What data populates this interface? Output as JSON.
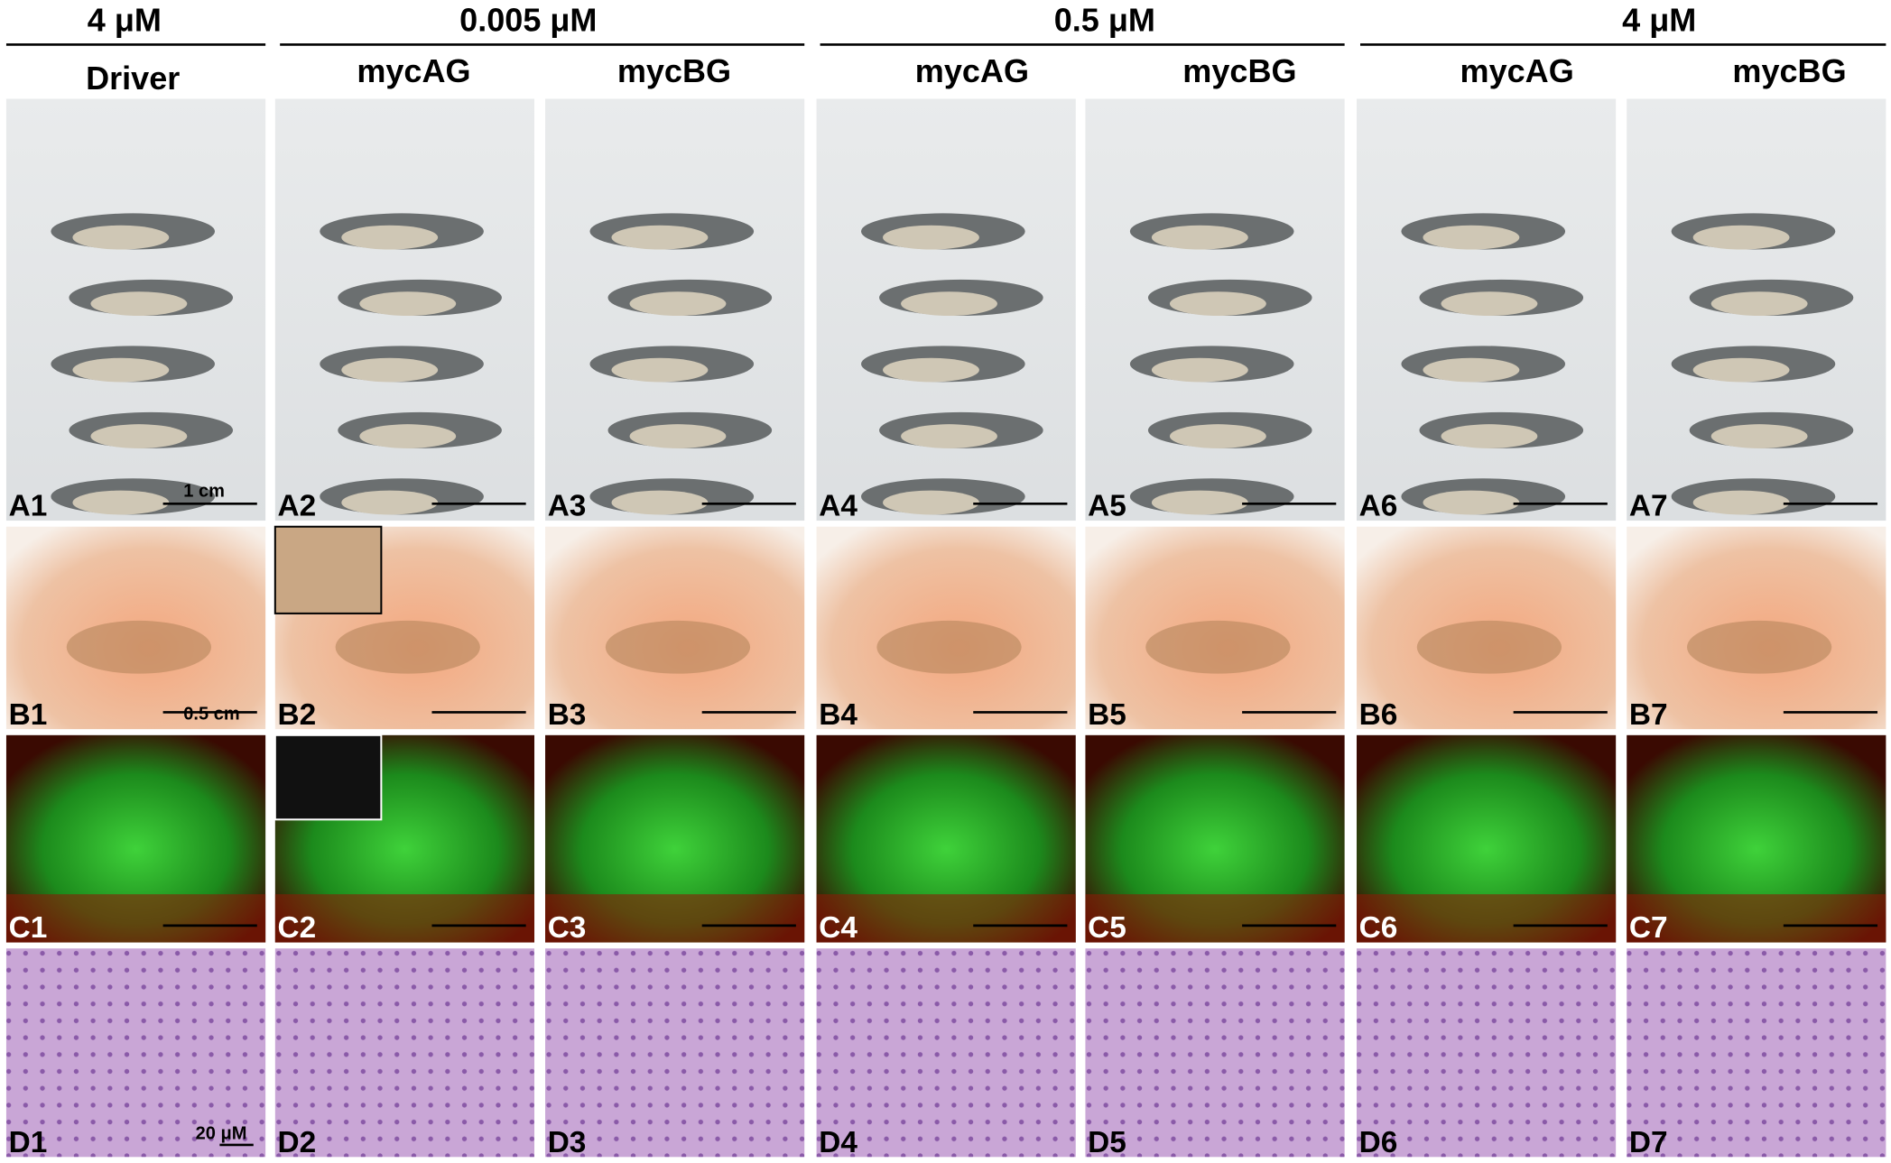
{
  "header": {
    "groups": [
      "4 μM",
      "0.005 μM",
      "0.5 μM",
      "4 μM"
    ]
  },
  "columns": [
    "Driver",
    "mycAG",
    "mycBG",
    "mycAG",
    "mycBG",
    "mycAG",
    "mycBG"
  ],
  "rows": [
    [
      "A1",
      "A2",
      "A3",
      "A4",
      "A5",
      "A6",
      "A7"
    ],
    [
      "B1",
      "B2",
      "B3",
      "B4",
      "B5",
      "B6",
      "B7"
    ],
    [
      "C1",
      "C2",
      "C3",
      "C4",
      "C5",
      "C6",
      "C7"
    ],
    [
      "D1",
      "D2",
      "D3",
      "D4",
      "D5",
      "D6",
      "D7"
    ]
  ],
  "scale_labels": {
    "A1": "1 cm",
    "B1": "0.5 cm",
    "D1": "20 μM"
  }
}
